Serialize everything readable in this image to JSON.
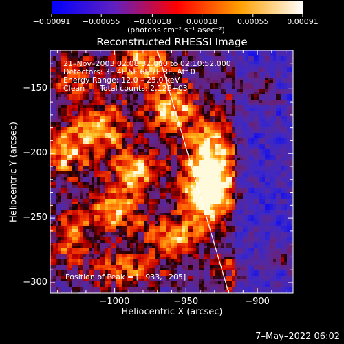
{
  "chart_data": {
    "type": "heatmap",
    "title": "Reconstructed RHESSI Image",
    "xlabel": "Heliocentric X (arcsec)",
    "ylabel": "Heliocentric Y (arcsec)",
    "xlim": [
      -1045,
      -875
    ],
    "ylim": [
      -308,
      -120
    ],
    "xticks": [
      {
        "value": -1000,
        "label": "−1000"
      },
      {
        "value": -950,
        "label": "−950"
      },
      {
        "value": -900,
        "label": "−900"
      }
    ],
    "yticks": [
      {
        "value": -150,
        "label": "−150"
      },
      {
        "value": -200,
        "label": "−200"
      },
      {
        "value": -250,
        "label": "−250"
      },
      {
        "value": -300,
        "label": "−300"
      }
    ],
    "colorbar": {
      "label": "(photons cm⁻² s⁻¹ asec⁻²)",
      "range": [
        -0.00091,
        0.00091
      ],
      "ticks": [
        {
          "value": -0.00091,
          "label": "−0.00091"
        },
        {
          "value": -0.00055,
          "label": "−0.00055"
        },
        {
          "value": -0.00018,
          "label": "−0.00018"
        },
        {
          "value": 0.00018,
          "label": "0.00018"
        },
        {
          "value": 0.00055,
          "label": "0.00055"
        },
        {
          "value": 0.00091,
          "label": "0.00091"
        }
      ],
      "colors": [
        "#0000ff",
        "#6020c0",
        "#ff0000",
        "#ffa000",
        "#ffffff"
      ]
    },
    "annotations": {
      "time_range": "21–Nov–2003 02:08:32.000 to 02:10:52.000",
      "detectors": "Detectors: 3F 4F 5F 6F 7F 8F, Att 0",
      "energy": "Energy Range: 12.0 – 25.0 keV",
      "method": "Clean",
      "counts": "Total counts: 2.12E+03",
      "peak": "Position of Peak = [−933,−205]"
    },
    "limb_line": [
      [
        -970,
        -120
      ],
      [
        -920,
        -308
      ]
    ],
    "hotspots": [
      {
        "x": -980,
        "y": -130,
        "sx": 14,
        "sy": 12,
        "amp": 0.9
      },
      {
        "x": -1030,
        "y": -140,
        "sx": 10,
        "sy": 10,
        "amp": 0.7
      },
      {
        "x": -960,
        "y": -165,
        "sx": 12,
        "sy": 14,
        "amp": 1.0
      },
      {
        "x": -1010,
        "y": -180,
        "sx": 14,
        "sy": 16,
        "amp": 0.9
      },
      {
        "x": -1035,
        "y": -200,
        "sx": 10,
        "sy": 14,
        "amp": 0.8
      },
      {
        "x": -985,
        "y": -215,
        "sx": 12,
        "sy": 12,
        "amp": 0.95
      },
      {
        "x": -933,
        "y": -205,
        "sx": 12,
        "sy": 20,
        "amp": 1.25
      },
      {
        "x": -935,
        "y": -235,
        "sx": 12,
        "sy": 14,
        "amp": 1.1
      },
      {
        "x": -1000,
        "y": -245,
        "sx": 14,
        "sy": 12,
        "amp": 0.85
      },
      {
        "x": -960,
        "y": -265,
        "sx": 14,
        "sy": 12,
        "amp": 0.9
      },
      {
        "x": -1030,
        "y": -265,
        "sx": 10,
        "sy": 14,
        "amp": 0.75
      },
      {
        "x": -995,
        "y": -290,
        "sx": 16,
        "sy": 10,
        "amp": 0.7
      },
      {
        "x": -900,
        "y": -150,
        "sx": 10,
        "sy": 10,
        "amp": 0.6
      },
      {
        "x": -920,
        "y": -290,
        "sx": 10,
        "sy": 10,
        "amp": 0.55
      },
      {
        "x": -885,
        "y": -280,
        "sx": 8,
        "sy": 8,
        "amp": 0.5
      }
    ]
  },
  "footer": {
    "date": "7–May–2022 06:02"
  }
}
